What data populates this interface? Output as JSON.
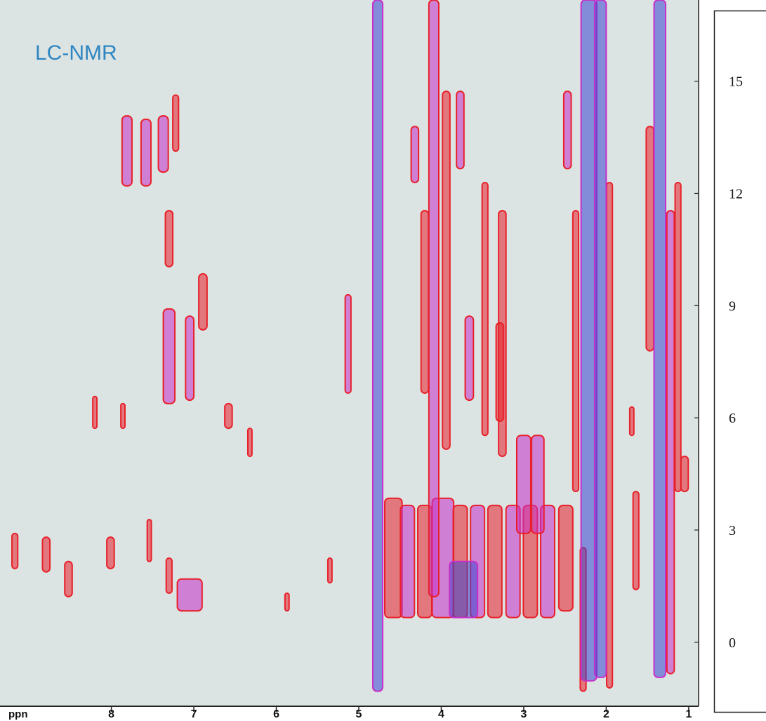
{
  "chart_data": {
    "type": "contour",
    "title": "LC-NMR",
    "x_label": "ppn",
    "xlim": [
      9.35,
      0.88
    ],
    "ylim": [
      -1.88,
      17.17
    ],
    "xticks": [
      8,
      7,
      6,
      5,
      4,
      3,
      2,
      1
    ],
    "yticks": [
      0,
      3,
      6,
      9,
      12,
      15
    ],
    "colors": [
      "#e8202a",
      "#c72fc9",
      "#3a45d0"
    ],
    "streaks": [
      [
        7.81,
        14.07,
        12.2,
        0.12,
        1
      ],
      [
        7.58,
        13.98,
        12.2,
        0.12,
        1
      ],
      [
        7.37,
        14.07,
        12.57,
        0.12,
        1
      ],
      [
        7.22,
        14.63,
        13.13,
        0.07,
        0
      ],
      [
        7.3,
        8.91,
        6.38,
        0.14,
        1
      ],
      [
        7.05,
        8.72,
        6.47,
        0.1,
        1
      ],
      [
        6.89,
        9.85,
        8.35,
        0.1,
        0
      ],
      [
        7.3,
        11.54,
        10.04,
        0.09,
        0
      ],
      [
        8.2,
        6.57,
        5.72,
        0.05,
        0
      ],
      [
        7.86,
        6.38,
        5.72,
        0.05,
        0
      ],
      [
        9.17,
        2.91,
        1.97,
        0.07,
        0
      ],
      [
        8.79,
        2.81,
        1.88,
        0.09,
        0
      ],
      [
        8.52,
        2.16,
        1.22,
        0.09,
        0
      ],
      [
        8.01,
        2.81,
        1.97,
        0.09,
        0
      ],
      [
        7.05,
        1.69,
        0.84,
        0.3,
        1
      ],
      [
        7.3,
        2.25,
        1.31,
        0.07,
        0
      ],
      [
        7.54,
        3.28,
        2.16,
        0.05,
        0
      ],
      [
        6.58,
        6.38,
        5.72,
        0.09,
        0
      ],
      [
        6.32,
        5.72,
        4.97,
        0.05,
        0
      ],
      [
        5.13,
        9.29,
        6.66,
        0.07,
        1
      ],
      [
        5.35,
        2.25,
        1.59,
        0.05,
        0
      ],
      [
        5.87,
        1.31,
        0.84,
        0.05,
        0
      ],
      [
        4.58,
        3.85,
        0.66,
        0.21,
        0
      ],
      [
        4.41,
        3.66,
        0.66,
        0.17,
        1
      ],
      [
        4.2,
        3.66,
        0.66,
        0.17,
        0
      ],
      [
        3.98,
        3.85,
        0.66,
        0.26,
        1
      ],
      [
        3.77,
        3.66,
        0.66,
        0.17,
        0
      ],
      [
        3.56,
        3.66,
        0.66,
        0.17,
        1
      ],
      [
        3.35,
        3.66,
        0.66,
        0.17,
        0
      ],
      [
        3.13,
        3.66,
        0.66,
        0.17,
        1
      ],
      [
        2.92,
        3.66,
        0.66,
        0.17,
        0
      ],
      [
        2.71,
        3.66,
        0.66,
        0.17,
        1
      ],
      [
        2.49,
        3.66,
        0.84,
        0.17,
        0
      ],
      [
        3.73,
        2.16,
        0.66,
        0.34,
        2
      ],
      [
        4.09,
        17.17,
        1.22,
        0.12,
        1
      ],
      [
        4.2,
        11.54,
        6.66,
        0.09,
        0
      ],
      [
        3.94,
        14.73,
        5.16,
        0.09,
        0
      ],
      [
        3.77,
        14.73,
        12.66,
        0.09,
        1
      ],
      [
        3.66,
        8.72,
        6.47,
        0.1,
        1
      ],
      [
        4.32,
        13.79,
        12.29,
        0.09,
        1
      ],
      [
        3.47,
        12.29,
        5.53,
        0.07,
        0
      ],
      [
        3.26,
        11.54,
        4.97,
        0.09,
        0
      ],
      [
        3.0,
        5.53,
        2.91,
        0.17,
        1
      ],
      [
        2.83,
        5.53,
        2.91,
        0.15,
        1
      ],
      [
        3.29,
        8.54,
        5.91,
        0.09,
        0
      ],
      [
        2.47,
        14.73,
        12.66,
        0.09,
        1
      ],
      [
        2.37,
        11.54,
        4.03,
        0.07,
        0
      ],
      [
        1.96,
        12.29,
        -1.22,
        0.07,
        0
      ],
      [
        2.28,
        2.53,
        -1.31,
        0.07,
        0
      ],
      [
        1.47,
        13.79,
        7.79,
        0.09,
        0
      ],
      [
        1.22,
        11.54,
        -0.84,
        0.09,
        1
      ],
      [
        1.13,
        12.29,
        4.03,
        0.07,
        0
      ],
      [
        1.64,
        4.03,
        1.41,
        0.07,
        0
      ],
      [
        1.05,
        4.97,
        4.03,
        0.09,
        0
      ],
      [
        1.69,
        6.29,
        5.53,
        0.05,
        0
      ],
      [
        4.77,
        17.17,
        -1.31,
        0.12,
        2
      ],
      [
        2.21,
        17.17,
        -1.03,
        0.19,
        2
      ],
      [
        2.07,
        17.17,
        -0.94,
        0.14,
        2
      ],
      [
        1.35,
        17.17,
        -0.94,
        0.14,
        2
      ]
    ]
  }
}
